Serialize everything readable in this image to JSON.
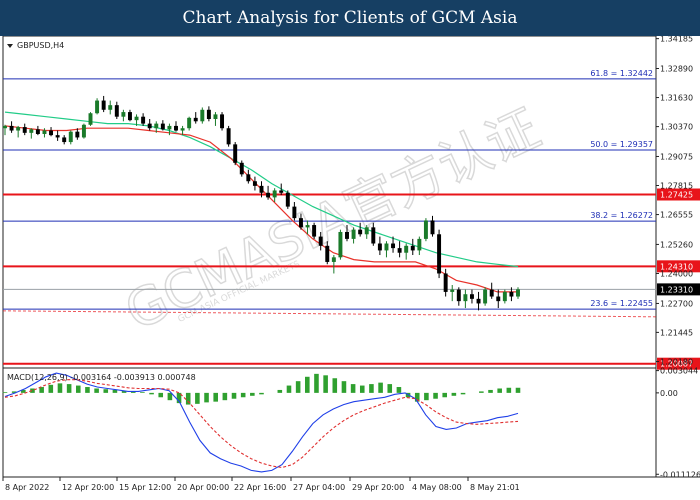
{
  "header": {
    "title": "Chart Analysis for Clients of GCM Asia"
  },
  "chart_data": [
    {
      "type": "candlestick",
      "symbol_label": "GBPUSD,H4",
      "x_ticks": [
        "8 Apr 2022",
        "12 Apr 20:00",
        "15 Apr 12:00",
        "20 Apr 00:00",
        "22 Apr 16:00",
        "27 Apr 04:00",
        "29 Apr 20:00",
        "4 May 08:00",
        "8 May 21:01"
      ],
      "y_ticks": [
        "1.34185",
        "1.32890",
        "1.31630",
        "1.30370",
        "1.29075",
        "1.27815",
        "1.26555",
        "1.25260",
        "1.24000",
        "1.22700",
        "1.21445",
        "1.20180"
      ],
      "ylim": [
        1.199,
        1.343
      ],
      "fib_levels": [
        {
          "label": "61.8 = 1.32442",
          "value": 1.32442
        },
        {
          "label": "50.0 = 1.29357",
          "value": 1.29357
        },
        {
          "label": "38.2 = 1.26272",
          "value": 1.26272
        },
        {
          "label": "23.6 = 1.22455",
          "value": 1.22455
        }
      ],
      "levels": [
        {
          "label": "1.27425",
          "value": 1.27425,
          "color": "#e8141a"
        },
        {
          "label": "1.24310",
          "value": 1.2431,
          "color": "#e8141a"
        },
        {
          "label": "1.20087",
          "value": 1.20087,
          "color": "#e8141a"
        }
      ],
      "current_price": {
        "label": "1.23310",
        "value": 1.2331
      },
      "ma_fast": [
        1.304,
        1.303,
        1.302,
        1.302,
        1.303,
        1.303,
        1.303,
        1.302,
        1.301,
        1.3,
        1.297,
        1.29,
        1.281,
        1.272,
        1.263,
        1.255,
        1.249,
        1.246,
        1.245,
        1.245,
        1.245,
        1.242,
        1.237,
        1.235,
        1.232,
        1.232
      ],
      "ma_slow": [
        1.31,
        1.309,
        1.308,
        1.307,
        1.306,
        1.305,
        1.305,
        1.304,
        1.302,
        1.299,
        1.295,
        1.29,
        1.285,
        1.279,
        1.274,
        1.269,
        1.265,
        1.261,
        1.258,
        1.255,
        1.252,
        1.249,
        1.247,
        1.245,
        1.244,
        1.243
      ],
      "candles": [
        [
          1.303,
          1.3045,
          1.3,
          1.304
        ],
        [
          1.304,
          1.306,
          1.301,
          1.302
        ],
        [
          1.302,
          1.304,
          1.299,
          1.3035
        ],
        [
          1.3035,
          1.305,
          1.3,
          1.301
        ],
        [
          1.301,
          1.303,
          1.2985,
          1.3025
        ],
        [
          1.3025,
          1.304,
          1.3,
          1.3005
        ],
        [
          1.3005,
          1.303,
          1.299,
          1.302
        ],
        [
          1.302,
          1.3035,
          1.2995,
          1.3
        ],
        [
          1.3,
          1.302,
          1.2975,
          1.299
        ],
        [
          1.299,
          1.3,
          1.296,
          1.297
        ],
        [
          1.297,
          1.302,
          1.296,
          1.3015
        ],
        [
          1.3015,
          1.303,
          1.298,
          1.299
        ],
        [
          1.299,
          1.305,
          1.2985,
          1.3045
        ],
        [
          1.3045,
          1.31,
          1.304,
          1.3095
        ],
        [
          1.3095,
          1.316,
          1.309,
          1.315
        ],
        [
          1.315,
          1.317,
          1.31,
          1.311
        ],
        [
          1.311,
          1.315,
          1.309,
          1.313
        ],
        [
          1.313,
          1.3145,
          1.307,
          1.308
        ],
        [
          1.308,
          1.311,
          1.306,
          1.31
        ],
        [
          1.31,
          1.311,
          1.306,
          1.3065
        ],
        [
          1.3065,
          1.309,
          1.304,
          1.308
        ],
        [
          1.308,
          1.3095,
          1.304,
          1.305
        ],
        [
          1.305,
          1.307,
          1.302,
          1.303
        ],
        [
          1.303,
          1.306,
          1.301,
          1.305
        ],
        [
          1.305,
          1.3065,
          1.302,
          1.3025
        ],
        [
          1.3025,
          1.305,
          1.3,
          1.304
        ],
        [
          1.304,
          1.306,
          1.3015,
          1.302
        ],
        [
          1.302,
          1.304,
          1.3,
          1.303
        ],
        [
          1.303,
          1.308,
          1.302,
          1.3075
        ],
        [
          1.3075,
          1.31,
          1.305,
          1.306
        ],
        [
          1.306,
          1.312,
          1.305,
          1.311
        ],
        [
          1.311,
          1.3125,
          1.306,
          1.307
        ],
        [
          1.307,
          1.31,
          1.304,
          1.309
        ],
        [
          1.309,
          1.31,
          1.302,
          1.303
        ],
        [
          1.303,
          1.304,
          1.295,
          1.296
        ],
        [
          1.296,
          1.297,
          1.287,
          1.288
        ],
        [
          1.288,
          1.289,
          1.282,
          1.283
        ],
        [
          1.283,
          1.285,
          1.279,
          1.28
        ],
        [
          1.28,
          1.282,
          1.276,
          1.278
        ],
        [
          1.278,
          1.28,
          1.273,
          1.275
        ],
        [
          1.275,
          1.278,
          1.272,
          1.273
        ],
        [
          1.273,
          1.277,
          1.271,
          1.276
        ],
        [
          1.276,
          1.279,
          1.274,
          1.275
        ],
        [
          1.275,
          1.276,
          1.268,
          1.269
        ],
        [
          1.269,
          1.271,
          1.263,
          1.264
        ],
        [
          1.264,
          1.266,
          1.259,
          1.26
        ],
        [
          1.26,
          1.263,
          1.257,
          1.261
        ],
        [
          1.261,
          1.262,
          1.255,
          1.256
        ],
        [
          1.256,
          1.258,
          1.25,
          1.252
        ],
        [
          1.252,
          1.254,
          1.244,
          1.245
        ],
        [
          1.245,
          1.248,
          1.24,
          1.247
        ],
        [
          1.247,
          1.259,
          1.246,
          1.258
        ],
        [
          1.258,
          1.261,
          1.254,
          1.255
        ],
        [
          1.255,
          1.26,
          1.253,
          1.259
        ],
        [
          1.259,
          1.262,
          1.256,
          1.257
        ],
        [
          1.257,
          1.261,
          1.255,
          1.26
        ],
        [
          1.26,
          1.262,
          1.252,
          1.253
        ],
        [
          1.253,
          1.256,
          1.248,
          1.25
        ],
        [
          1.25,
          1.254,
          1.247,
          1.253
        ],
        [
          1.253,
          1.256,
          1.249,
          1.251
        ],
        [
          1.251,
          1.254,
          1.247,
          1.249
        ],
        [
          1.249,
          1.253,
          1.246,
          1.252
        ],
        [
          1.252,
          1.255,
          1.248,
          1.25
        ],
        [
          1.25,
          1.256,
          1.248,
          1.255
        ],
        [
          1.255,
          1.264,
          1.254,
          1.263
        ],
        [
          1.263,
          1.265,
          1.256,
          1.257
        ],
        [
          1.257,
          1.259,
          1.238,
          1.24
        ],
        [
          1.24,
          1.242,
          1.23,
          1.232
        ],
        [
          1.232,
          1.235,
          1.228,
          1.233
        ],
        [
          1.233,
          1.234,
          1.226,
          1.228
        ],
        [
          1.228,
          1.233,
          1.225,
          1.231
        ],
        [
          1.231,
          1.233,
          1.227,
          1.229
        ],
        [
          1.229,
          1.232,
          1.224,
          1.227
        ],
        [
          1.227,
          1.234,
          1.226,
          1.233
        ],
        [
          1.233,
          1.236,
          1.229,
          1.23
        ],
        [
          1.23,
          1.233,
          1.225,
          1.228
        ],
        [
          1.228,
          1.233,
          1.227,
          1.232
        ],
        [
          1.232,
          1.234,
          1.228,
          1.23
        ],
        [
          1.23,
          1.234,
          1.229,
          1.2331
        ]
      ]
    },
    {
      "type": "macd",
      "label": "MACD(12,26,9) -0.003164 -0.003913 0.000748",
      "y_ticks": [
        "0.003044",
        "0.00",
        "-0.011126"
      ],
      "ylim": [
        -0.0115,
        0.0034
      ],
      "histogram": [
        0.0001,
        0.0002,
        0.0004,
        0.0006,
        0.0008,
        0.0011,
        0.0013,
        0.0012,
        0.001,
        0.0008,
        0.0006,
        0.0005,
        0.0004,
        0.0003,
        0.0002,
        0.0001,
        -0.0002,
        -0.0006,
        -0.001,
        -0.0014,
        -0.0016,
        -0.0015,
        -0.0013,
        -0.0012,
        -0.001,
        -0.0008,
        -0.0006,
        -0.0004,
        -0.0002,
        0.0,
        0.0004,
        0.001,
        0.0016,
        0.0022,
        0.0026,
        0.0024,
        0.002,
        0.0016,
        0.0012,
        0.001,
        0.0012,
        0.0014,
        0.0012,
        0.0008,
        -0.0006,
        -0.0012,
        -0.001,
        -0.0008,
        -0.0006,
        -0.0004,
        -0.0002,
        0.0,
        0.0002,
        0.0004,
        0.0006,
        0.0007,
        0.0007
      ],
      "macd_line": [
        -0.0005,
        0.0,
        0.0006,
        0.0014,
        0.0022,
        0.0027,
        0.0024,
        0.0018,
        0.0012,
        0.0008,
        0.0006,
        0.0004,
        0.0002,
        0.0002,
        0.0004,
        0.0006,
        0.0003,
        -0.0012,
        -0.004,
        -0.0065,
        -0.0082,
        -0.009,
        -0.0096,
        -0.01,
        -0.0106,
        -0.0108,
        -0.0106,
        -0.0098,
        -0.008,
        -0.006,
        -0.0042,
        -0.003,
        -0.0022,
        -0.0016,
        -0.0012,
        -0.001,
        -0.0008,
        -0.0006,
        -0.0002,
        0.0,
        -0.0008,
        -0.003,
        -0.0046,
        -0.005,
        -0.0048,
        -0.0042,
        -0.004,
        -0.0038,
        -0.0034,
        -0.0032,
        -0.0028
      ],
      "signal_line": [
        -0.0006,
        -0.0004,
        0.0,
        0.0005,
        0.0011,
        0.0016,
        0.0018,
        0.0018,
        0.0016,
        0.0013,
        0.0011,
        0.0009,
        0.0007,
        0.0006,
        0.0006,
        0.0006,
        0.0005,
        0.0,
        -0.0014,
        -0.003,
        -0.0046,
        -0.006,
        -0.0072,
        -0.0082,
        -0.009,
        -0.0096,
        -0.01,
        -0.0102,
        -0.0098,
        -0.0088,
        -0.0074,
        -0.006,
        -0.0048,
        -0.0038,
        -0.003,
        -0.0024,
        -0.0019,
        -0.0014,
        -0.001,
        -0.0006,
        -0.0008,
        -0.0016,
        -0.0026,
        -0.0034,
        -0.004,
        -0.0042,
        -0.0043,
        -0.0042,
        -0.0041,
        -0.004,
        -0.0039
      ]
    }
  ],
  "watermark": {
    "text": "GCMASIA官方认证",
    "subtext": "GCM ASIA OFFICIAL MARKETS"
  },
  "colors": {
    "header_bg": "#163f63",
    "fib_line": "#1f2fb5",
    "level_line": "#e8141a",
    "ma_fast": "#e8322a",
    "ma_slow": "#22cc88",
    "bull": "#1a7a2a",
    "bear": "#000000",
    "macd_line": "#2040e8",
    "signal_line": "#e03030",
    "histogram": "#2fa02f"
  }
}
